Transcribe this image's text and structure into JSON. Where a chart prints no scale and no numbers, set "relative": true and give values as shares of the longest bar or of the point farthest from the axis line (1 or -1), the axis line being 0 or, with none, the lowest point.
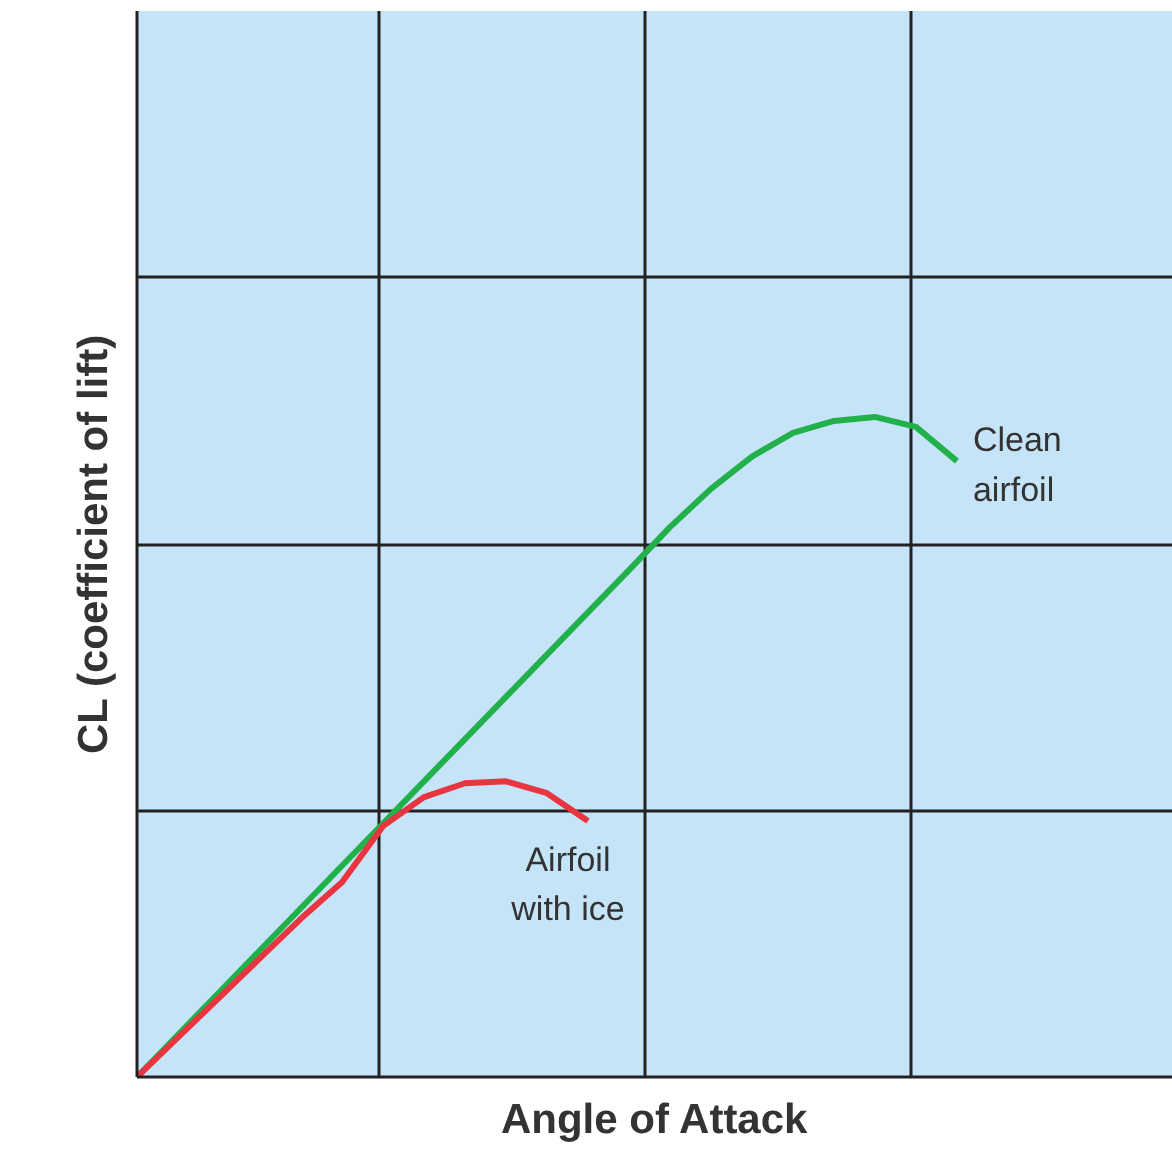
{
  "chart_data": {
    "type": "line",
    "relative": true,
    "xlabel": "Angle of Attack",
    "ylabel": "CL (coefficient of lift)",
    "grid": true,
    "marker": "none",
    "line_style": "solid",
    "categories": [
      null,
      null,
      null,
      null,
      null,
      null,
      null,
      null,
      null,
      null,
      null,
      null,
      null,
      null,
      null,
      null,
      null,
      null,
      null,
      null,
      null
    ],
    "series": [
      {
        "name": "Clean airfoil",
        "color": "#22b04b",
        "values": [
          0,
          0.064,
          0.128,
          0.192,
          0.256,
          0.32,
          0.384,
          0.448,
          0.512,
          0.576,
          0.64,
          0.704,
          0.768,
          0.833,
          0.891,
          0.94,
          0.976,
          0.994,
          1.0,
          0.985,
          0.933
        ]
      },
      {
        "name": "Airfoil with ice",
        "color": "#e8353f",
        "values": [
          0,
          0.06,
          0.12,
          0.18,
          0.24,
          0.295,
          0.38,
          0.424,
          0.445,
          0.448,
          0.43,
          0.388,
          null,
          null,
          null,
          null,
          null,
          null,
          null,
          null,
          null
        ]
      }
    ]
  }
}
